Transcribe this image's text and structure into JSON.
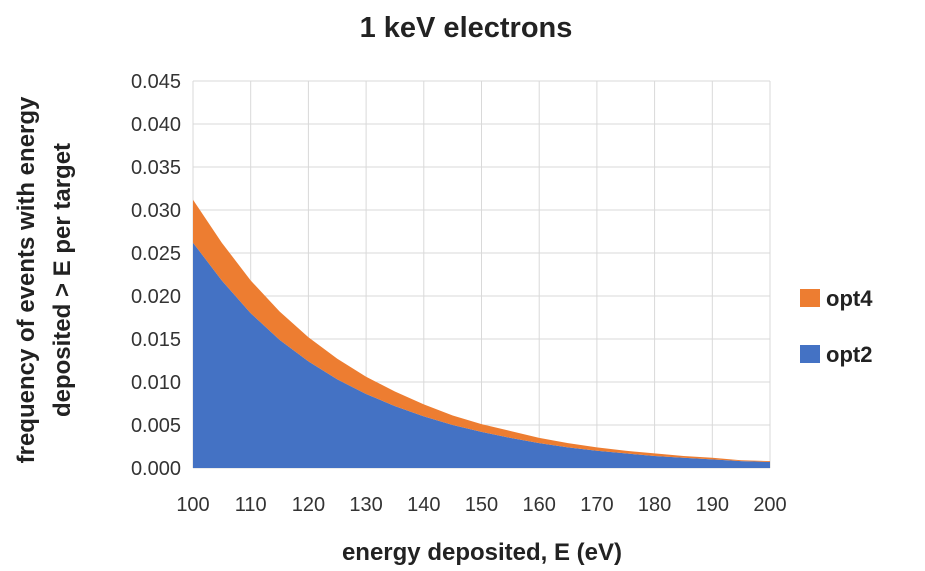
{
  "chart_data": {
    "type": "area",
    "stacked": true,
    "title": "1 keV electrons",
    "xlabel": "energy deposited, E (eV)",
    "ylabel_lines": [
      "frequency of events with energy",
      "deposited  > E per target"
    ],
    "xlim": [
      100,
      200
    ],
    "ylim": [
      0,
      0.045
    ],
    "x_ticks": [
      "100",
      "110",
      "120",
      "130",
      "140",
      "150",
      "160",
      "170",
      "180",
      "190",
      "200"
    ],
    "y_ticks": [
      "0.000",
      "0.005",
      "0.010",
      "0.015",
      "0.020",
      "0.025",
      "0.030",
      "0.035",
      "0.040",
      "0.045"
    ],
    "grid": true,
    "legend_position": "right",
    "x": [
      100,
      105,
      110,
      115,
      120,
      125,
      130,
      135,
      140,
      145,
      150,
      155,
      160,
      165,
      170,
      175,
      180,
      185,
      190,
      195,
      200
    ],
    "series": [
      {
        "name": "opt2",
        "color": "#4472C4",
        "values": [
          0.0262,
          0.0218,
          0.018,
          0.0149,
          0.0124,
          0.0103,
          0.0086,
          0.0072,
          0.006,
          0.005,
          0.0042,
          0.0035,
          0.0029,
          0.0024,
          0.002,
          0.0017,
          0.0014,
          0.0012,
          0.001,
          0.0008,
          0.0007
        ]
      },
      {
        "name": "opt4",
        "color": "#ED7D31",
        "values": [
          0.005,
          0.0044,
          0.0038,
          0.0033,
          0.0028,
          0.0024,
          0.002,
          0.0017,
          0.0014,
          0.0011,
          0.0009,
          0.0008,
          0.0006,
          0.0005,
          0.0004,
          0.0003,
          0.0003,
          0.0002,
          0.0002,
          0.0001,
          0.0001
        ]
      }
    ]
  }
}
